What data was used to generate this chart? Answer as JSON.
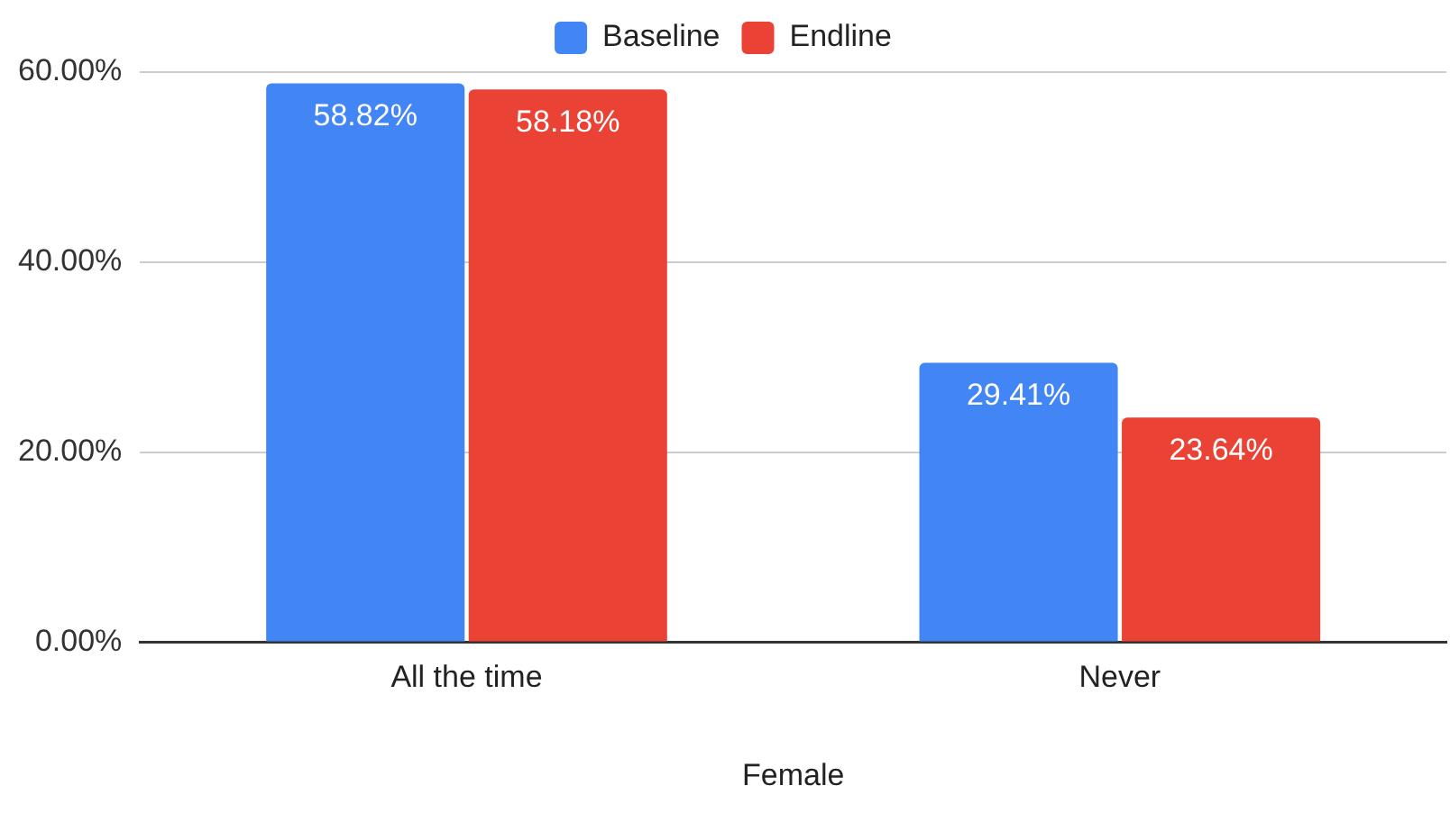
{
  "chart_data": {
    "type": "bar",
    "xlabel": "Female",
    "categories": [
      "All the time",
      "Never"
    ],
    "series": [
      {
        "name": "Baseline",
        "color": "#4285f4",
        "values": [
          58.82,
          29.41
        ],
        "value_labels": [
          "58.82%",
          "29.41%"
        ]
      },
      {
        "name": "Endline",
        "color": "#ea4335",
        "values": [
          58.18,
          23.64
        ],
        "value_labels": [
          "58.18%",
          "23.64%"
        ]
      }
    ],
    "ylim": [
      0,
      60
    ],
    "yticks": [
      {
        "value": 0,
        "label": "0.00%"
      },
      {
        "value": 20,
        "label": "20.00%"
      },
      {
        "value": 40,
        "label": "40.00%"
      },
      {
        "value": 60,
        "label": "60.00%"
      }
    ],
    "grid": "y",
    "legend": "top"
  }
}
